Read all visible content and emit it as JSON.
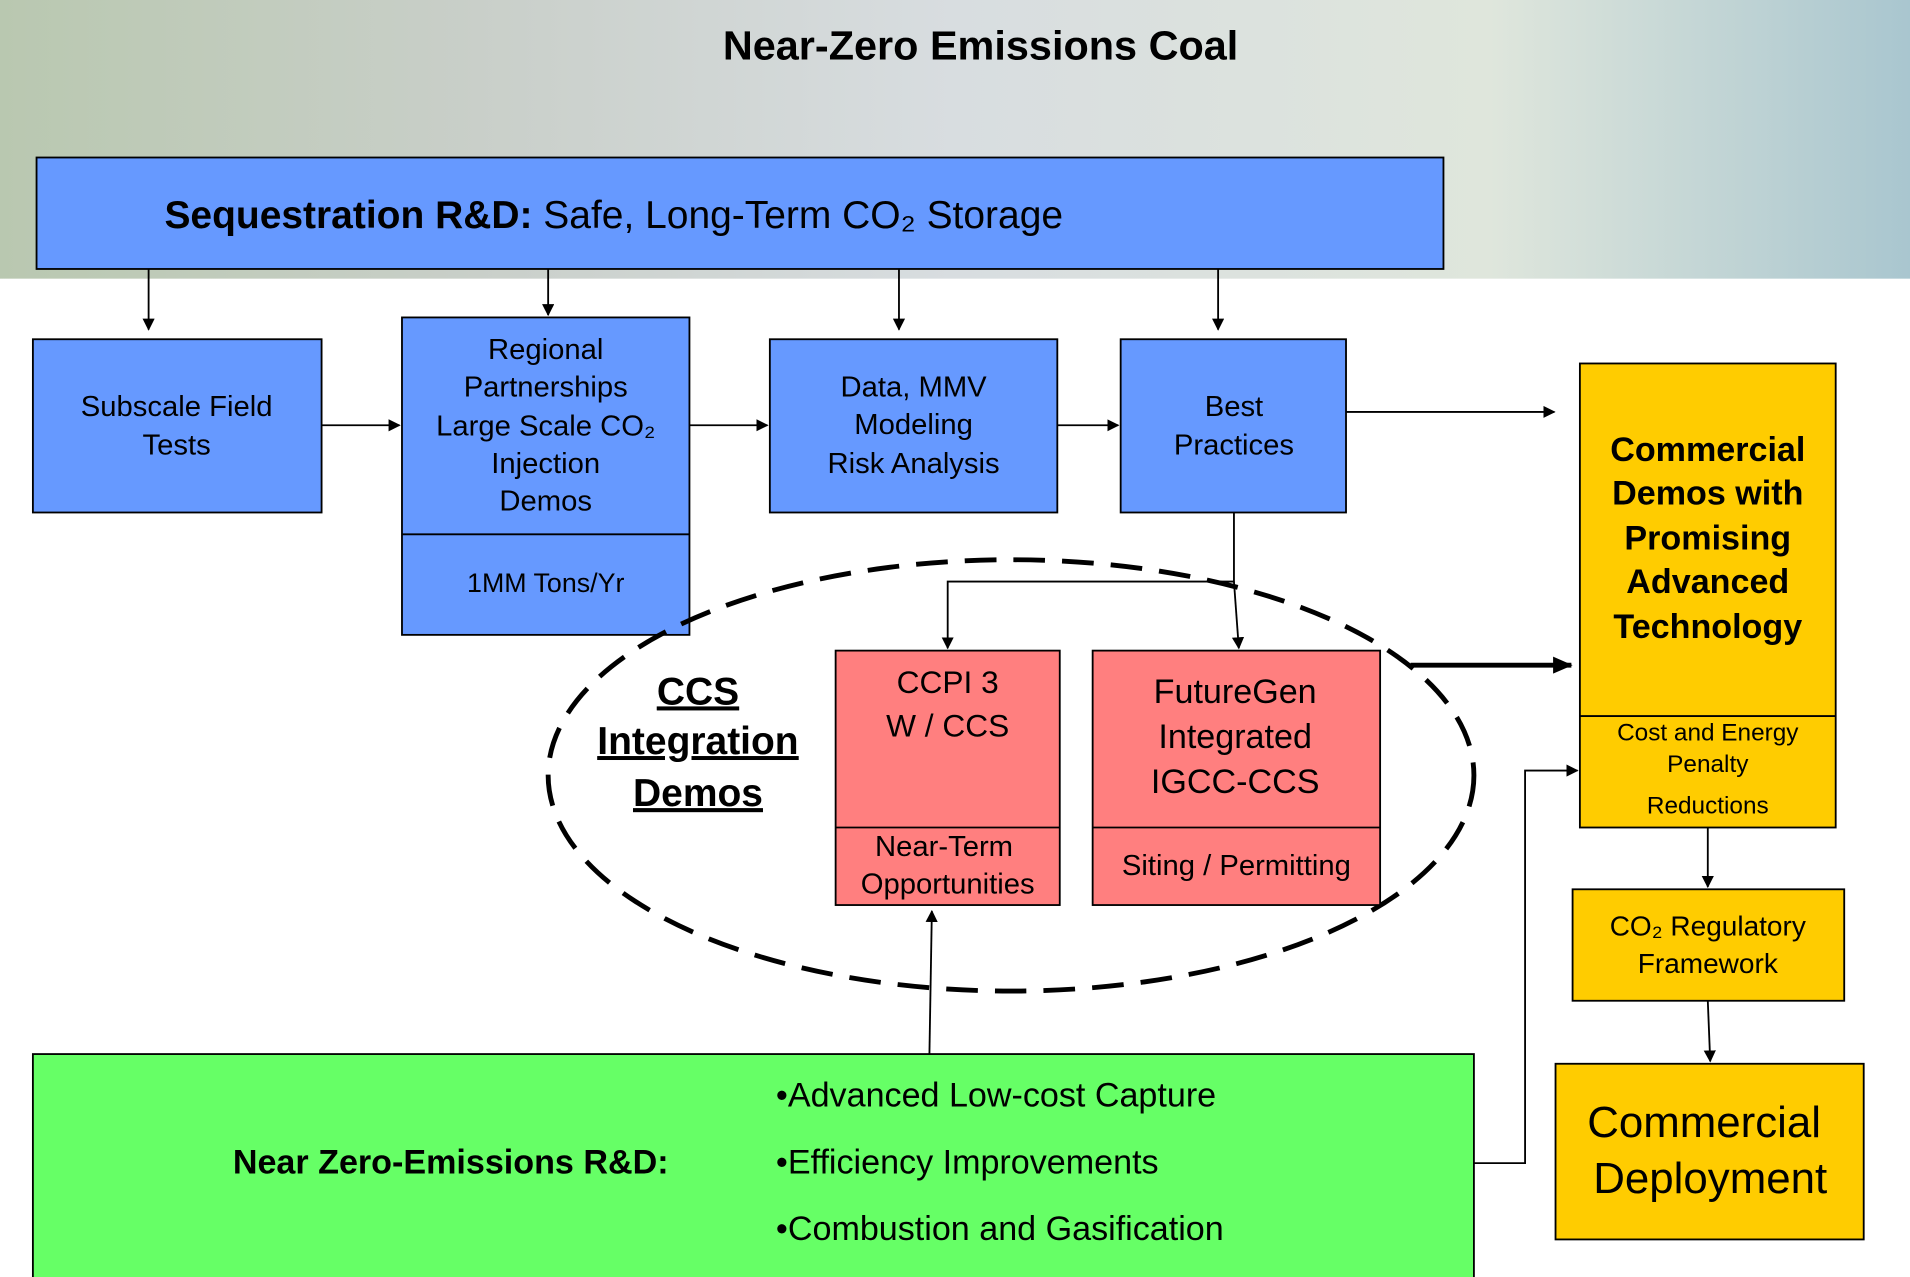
{
  "title": "Near-Zero Emissions Coal",
  "sequestration": {
    "label": "Sequestration R&D:",
    "text": "Safe, Long-Term CO₂ Storage"
  },
  "nodes": [
    {
      "lines": [
        "Subscale Field",
        "Tests"
      ]
    },
    {
      "lines": [
        "Regional",
        "Partnerships",
        "Large Scale CO₂",
        "Injection",
        "Demos"
      ],
      "sub": "1MM Tons/Yr"
    },
    {
      "lines": [
        "Data, MMV",
        "Modeling",
        "Risk Analysis"
      ]
    },
    {
      "lines": [
        "Best",
        "Practices"
      ]
    }
  ],
  "ccs": {
    "lines": [
      "CCS",
      "Integration",
      "Demos"
    ]
  },
  "ccpi": {
    "lines": [
      "CCPI 3",
      "W / CCS"
    ],
    "sub": [
      "Near-Term",
      "Opportunities"
    ]
  },
  "futuregen": {
    "lines": [
      "FutureGen",
      "Integrated",
      "IGCC-CCS"
    ],
    "sub": "Siting / Permitting"
  },
  "commercial_demos": {
    "lines": [
      "Commercial",
      "Demos with",
      "Promising",
      "Advanced",
      "Technology"
    ],
    "sub": [
      "Cost and Energy",
      "Penalty",
      "Reductions"
    ]
  },
  "regulatory": {
    "lines": [
      "CO₂ Regulatory",
      "Framework"
    ]
  },
  "deployment": {
    "lines": [
      "Commercial",
      "Deployment"
    ]
  },
  "near_zero": {
    "label": "Near Zero-Emissions R&D:",
    "bullets": [
      "•Advanced Low-cost Capture",
      "•Efficiency Improvements",
      "•Combustion and Gasification"
    ]
  }
}
